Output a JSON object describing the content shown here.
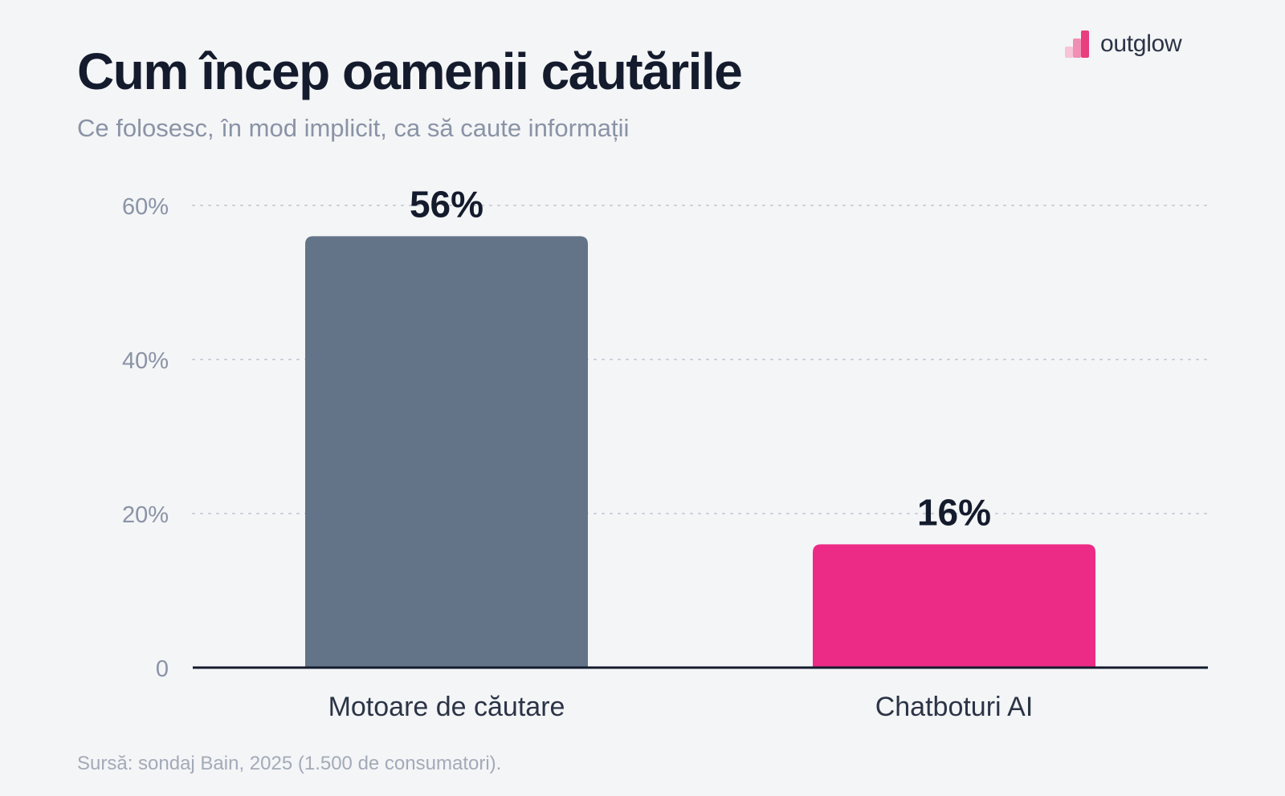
{
  "header": {
    "title": "Cum încep oamenii căutările",
    "subtitle": "Ce folosesc, în mod implicit, ca să caute informații"
  },
  "brand": {
    "name": "outglow",
    "icon": "bar-logo-icon",
    "colors": [
      "#f6c3d7",
      "#f08fb3",
      "#e83e7f"
    ]
  },
  "footer": {
    "source": "Sursă: sondaj Bain, 2025 (1.500 de consumatori)."
  },
  "chart_data": {
    "type": "bar",
    "categories": [
      "Motoare de căutare",
      "Chatboturi AI"
    ],
    "values": [
      56,
      16
    ],
    "value_labels": [
      "56%",
      "16%"
    ],
    "bar_colors": [
      "#637489",
      "#ec2b86"
    ],
    "ylim": [
      0,
      60
    ],
    "yticks": [
      {
        "value": 0,
        "label": "0"
      },
      {
        "value": 20,
        "label": "20%"
      },
      {
        "value": 40,
        "label": "40%"
      },
      {
        "value": 60,
        "label": "60%"
      }
    ],
    "grid": "dotted horizontal",
    "xlabel": "",
    "ylabel": ""
  }
}
